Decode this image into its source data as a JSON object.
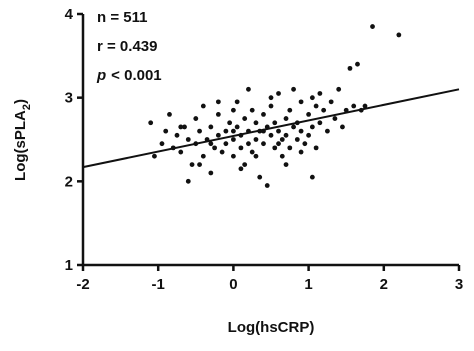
{
  "chart_data": {
    "type": "scatter",
    "x": [
      -1.1,
      -1.05,
      -0.95,
      -0.9,
      -0.85,
      -0.8,
      -0.75,
      -0.7,
      -0.65,
      -0.6,
      -0.55,
      -0.5,
      -0.5,
      -0.45,
      -0.4,
      -0.4,
      -0.35,
      -0.3,
      -0.3,
      -0.25,
      -0.2,
      -0.2,
      -0.15,
      -0.1,
      -0.1,
      -0.05,
      0,
      0,
      0.05,
      0.05,
      0.1,
      0.1,
      0.15,
      0.15,
      0.2,
      0.2,
      0.25,
      0.25,
      0.3,
      0.3,
      0.35,
      0.35,
      0.4,
      0.4,
      0.45,
      0.45,
      0.5,
      0.5,
      0.55,
      0.55,
      0.6,
      0.6,
      0.65,
      0.65,
      0.7,
      0.7,
      0.75,
      0.75,
      0.8,
      0.8,
      0.85,
      0.85,
      0.9,
      0.9,
      0.95,
      1.0,
      1.0,
      1.05,
      1.05,
      1.1,
      1.1,
      1.15,
      1.15,
      1.2,
      1.25,
      1.3,
      1.35,
      1.4,
      1.45,
      1.5,
      1.55,
      1.6,
      1.65,
      1.7,
      1.75,
      1.85,
      2.2,
      -0.6,
      -0.45,
      0.1,
      0.3,
      1.05,
      0.0,
      -0.2,
      0.5,
      0.2,
      -0.7,
      0.7,
      0.4,
      0.0,
      -0.3,
      0.6,
      0.9
    ],
    "values": [
      2.7,
      2.3,
      2.45,
      2.6,
      2.8,
      2.4,
      2.55,
      2.35,
      2.65,
      2.5,
      2.2,
      2.75,
      2.45,
      2.6,
      2.3,
      2.9,
      2.5,
      2.65,
      2.1,
      2.4,
      2.55,
      2.8,
      2.35,
      2.6,
      2.45,
      2.7,
      2.5,
      2.3,
      2.65,
      2.95,
      2.4,
      2.55,
      2.75,
      2.2,
      2.6,
      2.45,
      2.85,
      2.35,
      2.5,
      2.7,
      2.6,
      2.05,
      2.45,
      2.8,
      2.65,
      1.95,
      2.55,
      2.9,
      2.4,
      2.7,
      2.6,
      3.05,
      2.5,
      2.3,
      2.75,
      2.55,
      2.85,
      2.4,
      2.65,
      3.1,
      2.5,
      2.7,
      2.95,
      2.6,
      2.45,
      2.8,
      2.55,
      2.65,
      3.0,
      2.9,
      2.4,
      2.7,
      3.05,
      2.85,
      2.6,
      2.95,
      2.75,
      3.1,
      2.65,
      2.85,
      3.35,
      2.9,
      3.4,
      2.85,
      2.9,
      3.85,
      3.75,
      2.0,
      2.2,
      2.15,
      2.3,
      2.05,
      2.85,
      2.95,
      3.0,
      3.1,
      2.65,
      2.2,
      2.6,
      2.6,
      2.45,
      2.45,
      2.35
    ],
    "color": "#111111",
    "fit": {
      "x": [
        -2,
        3
      ],
      "y": [
        2.17,
        3.1
      ]
    },
    "xlim": [
      -2,
      3
    ],
    "xticks": [
      -2,
      -1,
      0,
      1,
      2,
      3
    ],
    "ylim": [
      1,
      4
    ],
    "yticks": [
      1,
      2,
      3,
      4
    ],
    "xlabel": "Log(hsCRP)",
    "ylabel_main": "Log(sPLA",
    "ylabel_sub": "2",
    "ylabel_end": ")",
    "annotations": [
      "n = 511",
      "r = 0.439"
    ],
    "p_symbol": "p",
    "p_value": "< 0.001"
  }
}
